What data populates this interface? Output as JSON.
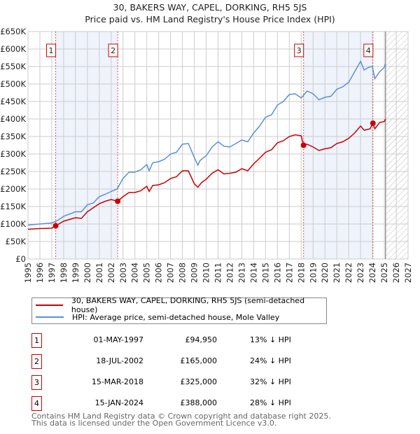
{
  "chart_data": {
    "type": "line",
    "title": "30, BAKERS WAY, CAPEL, DORKING, RH5 5JS",
    "subtitle": "Price paid vs. HM Land Registry's House Price Index (HPI)",
    "xlim": [
      1995,
      2027
    ],
    "ylim": [
      0,
      650000
    ],
    "yticks": [
      0,
      50000,
      100000,
      150000,
      200000,
      250000,
      300000,
      350000,
      400000,
      450000,
      500000,
      550000,
      600000,
      650000
    ],
    "ytick_labels": [
      "£0",
      "£50K",
      "£100K",
      "£150K",
      "£200K",
      "£250K",
      "£300K",
      "£350K",
      "£400K",
      "£450K",
      "£500K",
      "£550K",
      "£600K",
      "£650K"
    ],
    "xtick_labels": [
      "1995",
      "1996",
      "1997",
      "1998",
      "1999",
      "2000",
      "2001",
      "2002",
      "2003",
      "2004",
      "2005",
      "2006",
      "2007",
      "2008",
      "2009",
      "2010",
      "2011",
      "2012",
      "2013",
      "2014",
      "2015",
      "2016",
      "2017",
      "2018",
      "2019",
      "2020",
      "2021",
      "2022",
      "2023",
      "2024",
      "2025",
      "2026",
      "2027"
    ],
    "grid": true,
    "forecast_start": 2025.1,
    "shaded_ranges": [
      [
        1997.33,
        2002.55
      ],
      [
        2018.2,
        2024.04
      ]
    ],
    "series": [
      {
        "name": "30, BAKERS WAY, CAPEL, DORKING, RH5 5JS (semi-detached house)",
        "color": "#cc0000",
        "x": [
          1995,
          1996,
          1997,
          1997.33,
          1998,
          1999,
          1999.5,
          2000,
          2001,
          2001.5,
          2002,
          2002.55,
          2003,
          2003.5,
          2004,
          2004.5,
          2005,
          2005.2,
          2005.5,
          2006,
          2006.5,
          2007,
          2007.5,
          2008,
          2008.5,
          2009,
          2009.3,
          2009.6,
          2010,
          2010.5,
          2011,
          2011.5,
          2012,
          2012.5,
          2013,
          2013.5,
          2014,
          2014.5,
          2015,
          2015.5,
          2016,
          2016.5,
          2017,
          2017.5,
          2018,
          2018.2,
          2018.5,
          2019,
          2019.5,
          2020,
          2020.5,
          2021,
          2021.5,
          2022,
          2022.5,
          2023,
          2023.3,
          2023.8,
          2024.04,
          2024.2,
          2024.6,
          2025,
          2025.1
        ],
        "y": [
          85000,
          87000,
          88000,
          94950,
          108000,
          118000,
          116000,
          135000,
          158000,
          165000,
          170000,
          165000,
          178000,
          190000,
          190000,
          195000,
          208000,
          193000,
          210000,
          212000,
          218000,
          230000,
          235000,
          252000,
          252000,
          215000,
          205000,
          218000,
          228000,
          245000,
          255000,
          243000,
          245000,
          248000,
          258000,
          252000,
          272000,
          288000,
          305000,
          312000,
          332000,
          338000,
          350000,
          355000,
          352000,
          325000,
          328000,
          320000,
          310000,
          315000,
          318000,
          330000,
          335000,
          345000,
          360000,
          380000,
          368000,
          372000,
          388000,
          372000,
          390000,
          393000,
          400000
        ]
      },
      {
        "name": "HPI: Average price, semi-detached house, Mole Valley",
        "color": "#5b8fd6",
        "x": [
          1995,
          1996,
          1997,
          1997.5,
          1998,
          1999,
          1999.5,
          2000,
          2000.5,
          2001,
          2001.5,
          2002,
          2002.5,
          2003,
          2003.5,
          2004,
          2004.5,
          2005,
          2005.2,
          2005.5,
          2006,
          2006.5,
          2007,
          2007.5,
          2008,
          2008.5,
          2009,
          2009.3,
          2009.5,
          2010,
          2010.5,
          2011,
          2011.5,
          2012,
          2012.5,
          2013,
          2013.5,
          2014,
          2014.5,
          2015,
          2015.5,
          2016,
          2016.5,
          2017,
          2017.5,
          2018,
          2018.5,
          2019,
          2019.5,
          2020,
          2020.5,
          2021,
          2021.5,
          2022,
          2022.5,
          2023,
          2023.3,
          2023.7,
          2024,
          2024.2,
          2024.6,
          2025,
          2025.1
        ],
        "y": [
          97000,
          100000,
          103000,
          110000,
          122000,
          135000,
          135000,
          155000,
          160000,
          178000,
          185000,
          193000,
          200000,
          230000,
          248000,
          248000,
          255000,
          270000,
          252000,
          275000,
          278000,
          285000,
          300000,
          305000,
          328000,
          330000,
          290000,
          268000,
          282000,
          295000,
          320000,
          335000,
          322000,
          320000,
          330000,
          340000,
          335000,
          360000,
          380000,
          405000,
          412000,
          440000,
          450000,
          470000,
          472000,
          460000,
          480000,
          472000,
          455000,
          462000,
          465000,
          485000,
          492000,
          505000,
          535000,
          565000,
          540000,
          548000,
          550000,
          515000,
          535000,
          548000,
          558000
        ]
      }
    ],
    "sales": [
      {
        "label": "1",
        "x": 1997.33,
        "y": 94950
      },
      {
        "label": "2",
        "x": 2002.55,
        "y": 165000
      },
      {
        "label": "3",
        "x": 2018.2,
        "y": 325000
      },
      {
        "label": "4",
        "x": 2024.04,
        "y": 388000
      }
    ]
  },
  "title": "30, BAKERS WAY, CAPEL, DORKING, RH5 5JS",
  "subtitle": "Price paid vs. HM Land Registry's House Price Index (HPI)",
  "legend": {
    "property": "30, BAKERS WAY, CAPEL, DORKING, RH5 5JS (semi-detached house)",
    "hpi": "HPI: Average price, semi-detached house, Mole Valley"
  },
  "table": [
    {
      "num": "1",
      "date": "01-MAY-1997",
      "price": "£94,950",
      "pct": "13% ↓ HPI"
    },
    {
      "num": "2",
      "date": "18-JUL-2002",
      "price": "£165,000",
      "pct": "24% ↓ HPI"
    },
    {
      "num": "3",
      "date": "15-MAR-2018",
      "price": "£325,000",
      "pct": "32% ↓ HPI"
    },
    {
      "num": "4",
      "date": "15-JAN-2024",
      "price": "£388,000",
      "pct": "28% ↓ HPI"
    }
  ],
  "footer": [
    "Contains HM Land Registry data © Crown copyright and database right 2025.",
    "This data is licensed under the Open Government Licence v3.0."
  ]
}
